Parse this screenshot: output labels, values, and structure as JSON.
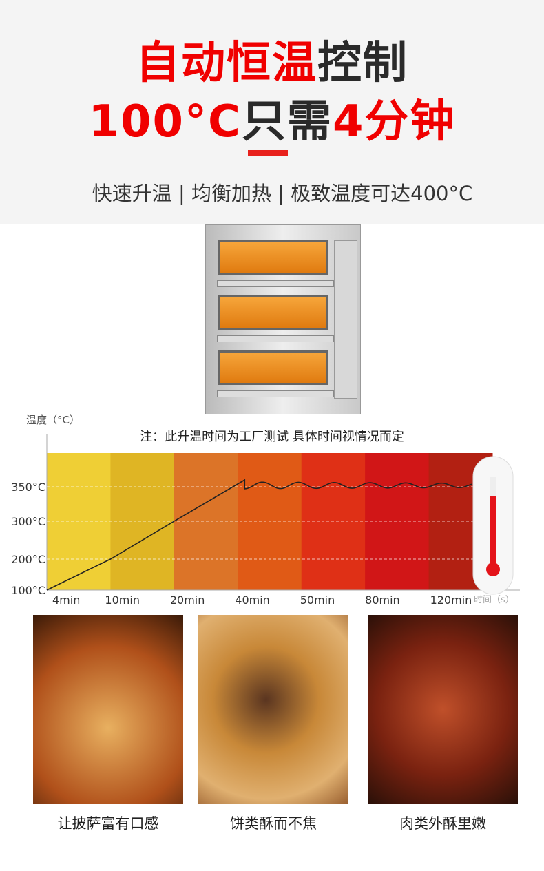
{
  "headline": {
    "line1_red": "自动恒温",
    "line1_dark": "控制",
    "line2_red_a": "100°C",
    "line2_dark": "只需",
    "line2_red_b": "4分钟"
  },
  "subtitle": "快速升温 | 均衡加热 | 极致温度可达400°C",
  "colors": {
    "accent": "#f00000",
    "bands": [
      "#efcf35",
      "#dfb524",
      "#dc7428",
      "#e05a16",
      "#df3016",
      "#d11617",
      "#b22012"
    ]
  },
  "chart_data": {
    "type": "line",
    "title": "注：此升温时间为工厂测试  具体时间视情况而定",
    "ylabel": "温度（°C）",
    "xlabel": "时间（s）",
    "y_ticks": [
      "100°C",
      "200°C",
      "300°C",
      "350°C"
    ],
    "x_ticks": [
      "4min",
      "10min",
      "20min",
      "40min",
      "50min",
      "80min",
      "120min"
    ],
    "series": [
      {
        "x": [
          "4min",
          "10min",
          "20min",
          "40min",
          "50min",
          "80min",
          "120min"
        ],
        "values": [
          100,
          200,
          300,
          360,
          350,
          350,
          350
        ]
      }
    ],
    "grid": true
  },
  "photos": [
    {
      "caption": "让披萨富有口感"
    },
    {
      "caption": "饼类酥而不焦"
    },
    {
      "caption": "肉类外酥里嫩"
    }
  ]
}
